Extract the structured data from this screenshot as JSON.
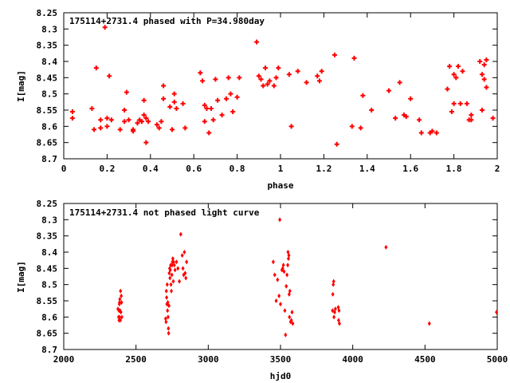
{
  "chart_data": [
    {
      "type": "scatter",
      "title": "175114+2731.4 phased with P=34.980day",
      "xlabel": "phase",
      "ylabel": "I[mag]",
      "xlim": [
        0,
        2
      ],
      "ylim": [
        8.25,
        8.7
      ],
      "y_inverted": true,
      "xticks": [
        "0",
        "0.2",
        "0.4",
        "0.6",
        "0.8",
        "1",
        "1.2",
        "1.4",
        "1.6",
        "1.8",
        "2"
      ],
      "yticks": [
        "8.25",
        "8.3",
        "8.35",
        "8.4",
        "8.45",
        "8.5",
        "8.55",
        "8.6",
        "8.65",
        "8.7"
      ],
      "marker_color": "#ff0000",
      "grid": false,
      "x": [
        0.04,
        0.04,
        0.13,
        0.14,
        0.15,
        0.17,
        0.17,
        0.19,
        0.2,
        0.2,
        0.21,
        0.22,
        0.26,
        0.28,
        0.28,
        0.29,
        0.3,
        0.32,
        0.32,
        0.34,
        0.35,
        0.36,
        0.37,
        0.37,
        0.38,
        0.38,
        0.39,
        0.43,
        0.44,
        0.45,
        0.46,
        0.46,
        0.49,
        0.5,
        0.51,
        0.51,
        0.52,
        0.55,
        0.56,
        0.63,
        0.64,
        0.65,
        0.65,
        0.66,
        0.67,
        0.68,
        0.69,
        0.7,
        0.71,
        0.73,
        0.75,
        0.76,
        0.77,
        0.78,
        0.8,
        0.81,
        0.89,
        0.9,
        0.91,
        0.92,
        0.93,
        0.94,
        0.95,
        0.97,
        0.98,
        0.99,
        1.04,
        1.05,
        1.08,
        1.12,
        1.17,
        1.18,
        1.19,
        1.25,
        1.26,
        1.33,
        1.34,
        1.37,
        1.38,
        1.42,
        1.5,
        1.53,
        1.55,
        1.57,
        1.58,
        1.6,
        1.64,
        1.65,
        1.69,
        1.7,
        1.72,
        1.77,
        1.78,
        1.79,
        1.8,
        1.8,
        1.81,
        1.82,
        1.83,
        1.84,
        1.86,
        1.87,
        1.88,
        1.88,
        1.92,
        1.93,
        1.93,
        1.94,
        1.94,
        1.95,
        1.95,
        1.98
      ],
      "y": [
        8.555,
        8.575,
        8.545,
        8.61,
        8.42,
        8.58,
        8.605,
        8.295,
        8.6,
        8.575,
        8.445,
        8.58,
        8.61,
        8.55,
        8.585,
        8.495,
        8.58,
        8.61,
        8.615,
        8.59,
        8.58,
        8.585,
        8.565,
        8.52,
        8.575,
        8.65,
        8.585,
        8.595,
        8.605,
        8.585,
        8.515,
        8.475,
        8.54,
        8.61,
        8.5,
        8.525,
        8.545,
        8.53,
        8.605,
        8.435,
        8.46,
        8.585,
        8.535,
        8.545,
        8.62,
        8.545,
        8.58,
        8.455,
        8.52,
        8.565,
        8.515,
        8.45,
        8.5,
        8.555,
        8.51,
        8.45,
        8.34,
        8.445,
        8.455,
        8.475,
        8.42,
        8.47,
        8.46,
        8.475,
        8.45,
        8.42,
        8.44,
        8.6,
        8.43,
        8.465,
        8.445,
        8.46,
        8.43,
        8.38,
        8.655,
        8.6,
        8.39,
        8.605,
        8.505,
        8.55,
        8.49,
        8.575,
        8.465,
        8.565,
        8.57,
        8.515,
        8.58,
        8.62,
        8.62,
        8.615,
        8.62,
        8.485,
        8.415,
        8.555,
        8.44,
        8.53,
        8.45,
        8.415,
        8.53,
        8.43,
        8.53,
        8.58,
        8.565,
        8.58,
        8.4,
        8.44,
        8.55,
        8.41,
        8.455,
        8.395,
        8.48,
        8.575
      ]
    },
    {
      "type": "scatter",
      "title": "175114+2731.4 not phased light curve",
      "xlabel": "hjd0",
      "ylabel": "I[mag]",
      "xlim": [
        2000,
        5000
      ],
      "ylim": [
        8.25,
        8.7
      ],
      "y_inverted": true,
      "xticks": [
        "2000",
        "2500",
        "3000",
        "3500",
        "4000",
        "4500",
        "5000"
      ],
      "yticks": [
        "8.25",
        "8.3",
        "8.35",
        "8.4",
        "8.45",
        "8.5",
        "8.55",
        "8.6",
        "8.65",
        "8.7"
      ],
      "marker_color": "#ff0000",
      "grid": false,
      "x": [
        2375,
        2380,
        2382,
        2383,
        2385,
        2385,
        2386,
        2388,
        2390,
        2392,
        2393,
        2395,
        2398,
        2400,
        2402,
        2705,
        2708,
        2710,
        2712,
        2714,
        2716,
        2718,
        2720,
        2722,
        2724,
        2726,
        2728,
        2730,
        2733,
        2735,
        2737,
        2740,
        2742,
        2745,
        2748,
        2750,
        2752,
        2755,
        2758,
        2760,
        2765,
        2770,
        2780,
        2790,
        2800,
        2810,
        2820,
        2825,
        2830,
        2835,
        2840,
        2845,
        2850,
        3450,
        3460,
        3470,
        3480,
        3490,
        3495,
        3500,
        3510,
        3515,
        3520,
        3525,
        3530,
        3535,
        3540,
        3545,
        3550,
        3552,
        3555,
        3558,
        3560,
        3562,
        3565,
        3570,
        3575,
        3580,
        3585,
        3860,
        3862,
        3865,
        3868,
        3870,
        3875,
        3880,
        3900,
        3902,
        3905,
        3908,
        4230,
        4530,
        4995
      ],
      "y": [
        8.575,
        8.6,
        8.58,
        8.61,
        8.56,
        8.6,
        8.555,
        8.545,
        8.58,
        8.61,
        8.52,
        8.585,
        8.535,
        8.555,
        8.6,
        8.605,
        8.615,
        8.52,
        8.54,
        8.56,
        8.5,
        8.58,
        8.555,
        8.6,
        8.635,
        8.65,
        8.565,
        8.465,
        8.45,
        8.48,
        8.455,
        8.44,
        8.5,
        8.52,
        8.47,
        8.44,
        8.43,
        8.42,
        8.49,
        8.43,
        8.44,
        8.455,
        8.43,
        8.45,
        8.49,
        8.345,
        8.41,
        8.45,
        8.47,
        8.4,
        8.465,
        8.48,
        8.43,
        8.43,
        8.47,
        8.55,
        8.485,
        8.535,
        8.3,
        8.56,
        8.455,
        8.45,
        8.44,
        8.46,
        8.58,
        8.655,
        8.505,
        8.47,
        8.44,
        8.4,
        8.42,
        8.41,
        8.53,
        8.6,
        8.52,
        8.615,
        8.61,
        8.585,
        8.62,
        8.58,
        8.53,
        8.5,
        8.49,
        8.6,
        8.585,
        8.575,
        8.57,
        8.61,
        8.58,
        8.62,
        8.385,
        8.62,
        8.585
      ]
    }
  ]
}
